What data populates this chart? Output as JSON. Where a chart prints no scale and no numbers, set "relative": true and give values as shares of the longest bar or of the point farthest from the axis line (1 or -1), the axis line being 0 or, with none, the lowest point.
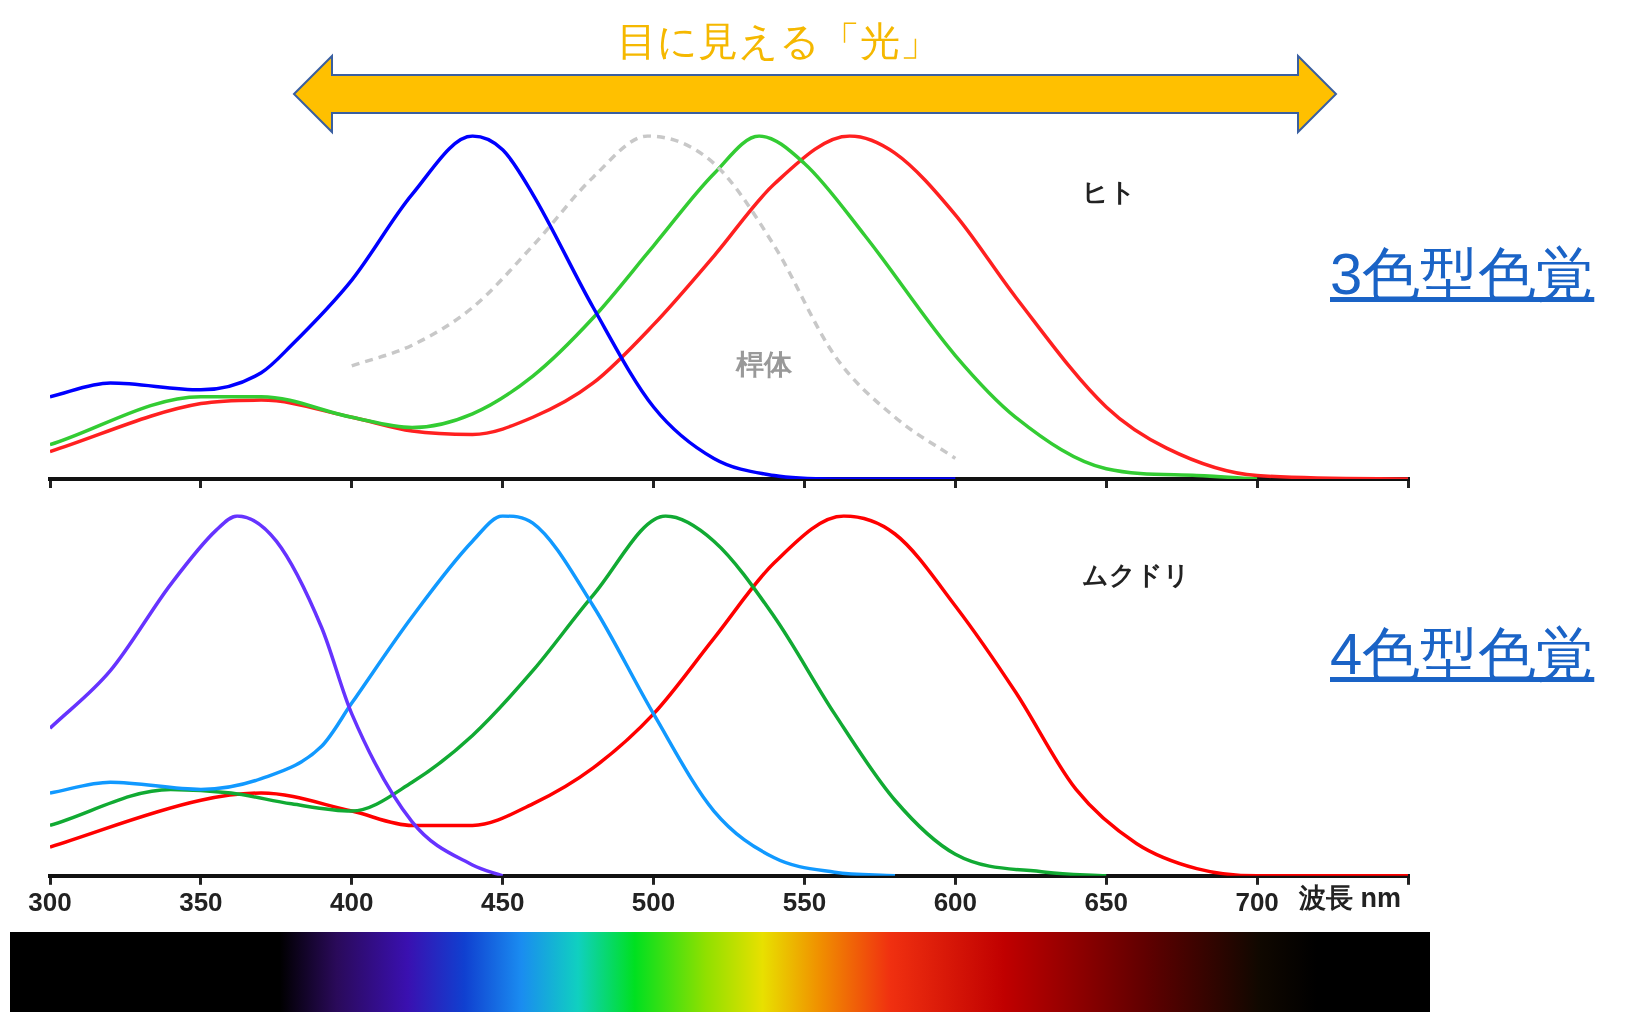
{
  "chart_data": [
    {
      "type": "line",
      "title": "目に見える「光」",
      "subtitle": "3色型色覚",
      "relative": true,
      "xlim": [
        300,
        750
      ],
      "xticks": [
        300,
        350,
        400,
        450,
        500,
        550,
        600,
        650,
        700,
        750
      ],
      "tick_labels": false,
      "legend": false,
      "marker": "none",
      "line_style": "solid",
      "annotations": [
        "ヒト",
        "桿体"
      ],
      "series": [
        {
          "color": "#0000ff",
          "x": [
            300,
            320,
            350,
            370,
            380,
            400,
            420,
            440,
            450,
            460,
            480,
            500,
            520,
            540,
            560,
            600
          ],
          "values": [
            0.24,
            0.28,
            0.26,
            0.31,
            0.39,
            0.58,
            0.83,
            1,
            0.96,
            0.83,
            0.5,
            0.21,
            0.06,
            0.01,
            0,
            0
          ]
        },
        {
          "color": "#c8c8c8",
          "line_style": "dashed",
          "x": [
            400,
            420,
            440,
            460,
            480,
            498,
            520,
            540,
            560,
            580,
            600
          ],
          "values": [
            0.33,
            0.39,
            0.5,
            0.68,
            0.88,
            1,
            0.92,
            0.68,
            0.36,
            0.18,
            0.06
          ]
        },
        {
          "color": "#33cc33",
          "x": [
            300,
            350,
            370,
            400,
            420,
            440,
            460,
            480,
            500,
            520,
            535,
            550,
            570,
            600,
            620,
            650,
            680,
            700
          ],
          "values": [
            0.1,
            0.24,
            0.24,
            0.18,
            0.15,
            0.19,
            0.3,
            0.47,
            0.68,
            0.89,
            1,
            0.92,
            0.71,
            0.36,
            0.18,
            0.03,
            0.01,
            0
          ]
        },
        {
          "color": "#ff2020",
          "x": [
            300,
            350,
            370,
            400,
            420,
            440,
            460,
            480,
            500,
            520,
            540,
            565,
            580,
            600,
            620,
            650,
            670,
            700,
            750
          ],
          "values": [
            0.08,
            0.22,
            0.23,
            0.18,
            0.14,
            0.13,
            0.18,
            0.28,
            0.45,
            0.65,
            0.86,
            1,
            0.95,
            0.77,
            0.53,
            0.21,
            0.09,
            0.01,
            0
          ]
        }
      ]
    },
    {
      "type": "line",
      "subtitle": "4色型色覚",
      "xlabel": "波長 nm",
      "relative": true,
      "xlim": [
        300,
        750
      ],
      "xticks": [
        300,
        350,
        400,
        450,
        500,
        550,
        600,
        650,
        700,
        {
          "value": 750,
          "label": null
        }
      ],
      "tick_labels": "x",
      "legend": false,
      "marker": "none",
      "line_style": "solid",
      "annotations": [
        "ムクドリ"
      ],
      "series": [
        {
          "color": "#6633ff",
          "x": [
            300,
            320,
            340,
            355,
            362,
            375,
            390,
            400,
            420,
            440,
            450
          ],
          "values": [
            0.41,
            0.57,
            0.81,
            0.96,
            1,
            0.93,
            0.69,
            0.45,
            0.15,
            0.03,
            0
          ]
        },
        {
          "color": "#1199ff",
          "x": [
            300,
            320,
            350,
            370,
            390,
            400,
            420,
            440,
            450,
            460,
            480,
            500,
            520,
            540,
            560,
            580
          ],
          "values": [
            0.23,
            0.26,
            0.24,
            0.27,
            0.36,
            0.48,
            0.72,
            0.93,
            1,
            0.98,
            0.75,
            0.45,
            0.18,
            0.05,
            0.01,
            0
          ]
        },
        {
          "color": "#11aa33",
          "x": [
            300,
            340,
            360,
            380,
            400,
            420,
            440,
            460,
            480,
            504,
            520,
            540,
            560,
            580,
            600,
            630,
            650
          ],
          "values": [
            0.14,
            0.24,
            0.23,
            0.2,
            0.18,
            0.26,
            0.39,
            0.57,
            0.78,
            1,
            0.93,
            0.72,
            0.45,
            0.21,
            0.06,
            0.01,
            0
          ]
        },
        {
          "color": "#ff0000",
          "x": [
            300,
            350,
            370,
            400,
            420,
            440,
            460,
            480,
            500,
            520,
            540,
            563,
            580,
            600,
            620,
            640,
            660,
            680,
            700,
            750
          ],
          "values": [
            0.08,
            0.21,
            0.23,
            0.18,
            0.14,
            0.14,
            0.2,
            0.3,
            0.45,
            0.66,
            0.87,
            1,
            0.95,
            0.75,
            0.51,
            0.24,
            0.09,
            0.02,
            0,
            0
          ]
        }
      ]
    }
  ]
}
